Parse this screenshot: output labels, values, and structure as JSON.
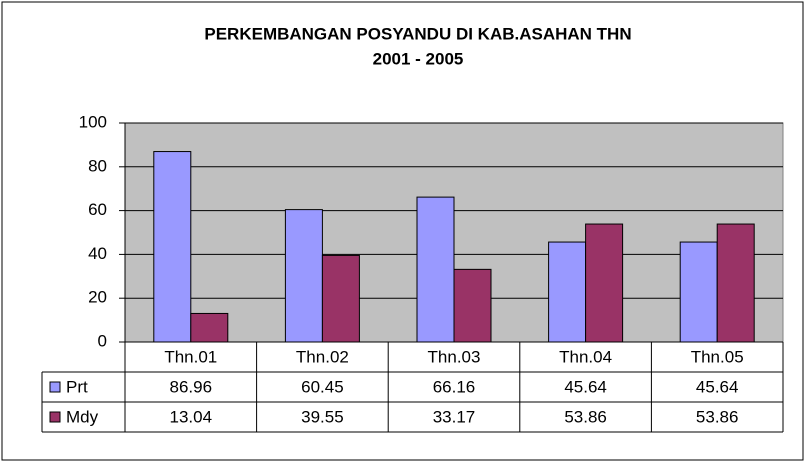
{
  "chart_data": {
    "type": "bar",
    "title": [
      "PERKEMBANGAN POSYANDU DI KAB.ASAHAN THN",
      "2001 - 2005"
    ],
    "categories": [
      "Thn.01",
      "Thn.02",
      "Thn.03",
      "Thn.04",
      "Thn.05"
    ],
    "series": [
      {
        "name": "Prt",
        "color": "#9999ff",
        "values": [
          86.96,
          60.45,
          66.16,
          45.64,
          45.64
        ]
      },
      {
        "name": "Mdy",
        "color": "#993366",
        "values": [
          13.04,
          39.55,
          33.17,
          53.86,
          53.86
        ]
      }
    ],
    "ylim": [
      0,
      100
    ],
    "yticks": [
      0,
      20,
      40,
      60,
      80,
      100
    ],
    "grid": true
  }
}
